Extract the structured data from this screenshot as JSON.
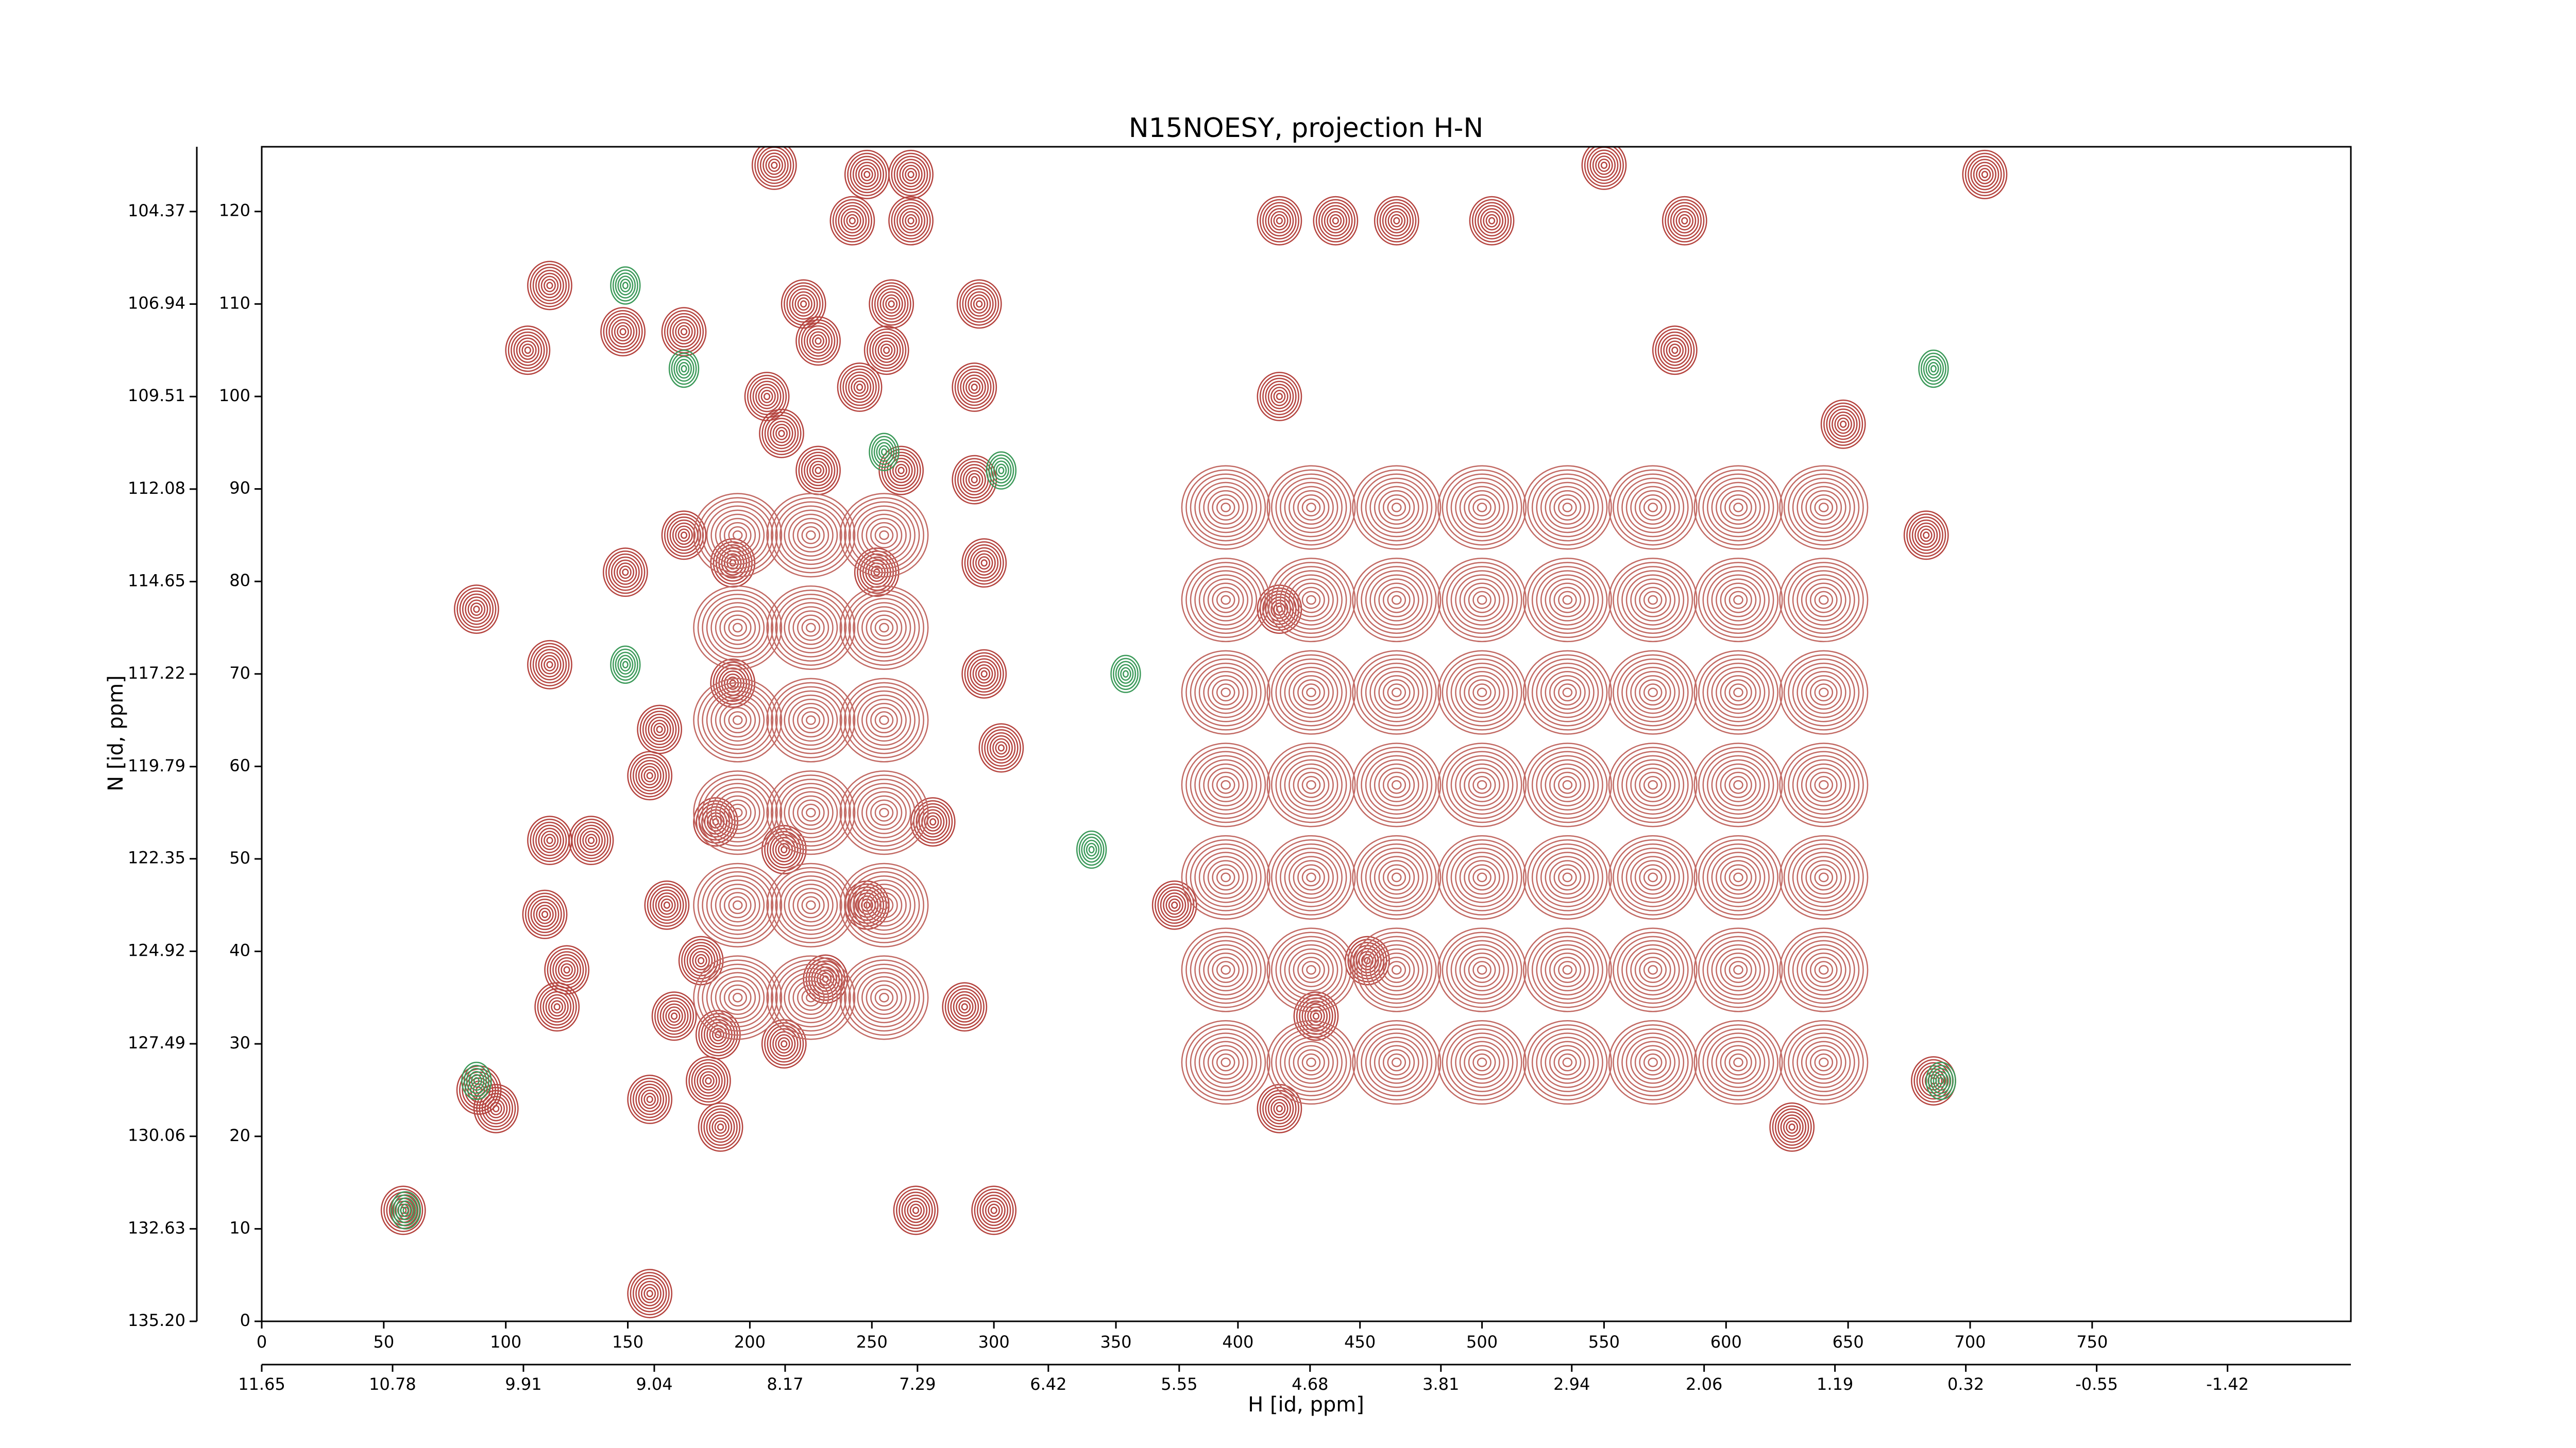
{
  "chart_data": {
    "type": "contour",
    "title": "N15NOESY, projection H-N",
    "xlabel": "H [id, ppm]",
    "ylabel": "N [id, ppm]",
    "xlim": [
      0,
      856
    ],
    "ylim": [
      0,
      127
    ],
    "xticks": [
      0,
      50,
      100,
      150,
      200,
      250,
      300,
      350,
      400,
      450,
      500,
      550,
      600,
      650,
      700,
      750
    ],
    "yticks": [
      0,
      10,
      20,
      30,
      40,
      50,
      60,
      70,
      80,
      90,
      100,
      110,
      120
    ],
    "x2lim": [
      11.65,
      -2.24
    ],
    "x2ticks": [
      11.65,
      10.78,
      9.91,
      9.04,
      8.17,
      7.29,
      6.42,
      5.55,
      4.68,
      3.81,
      2.94,
      2.06,
      1.19,
      0.32,
      {
        "value": -0.55,
        "label": "-0.55"
      },
      {
        "value": -1.42,
        "label": "-1.42"
      }
    ],
    "y2lim": [
      135.2,
      102.57
    ],
    "y2ticks": [
      {
        "value": 135.2,
        "label": "135.20"
      },
      132.63,
      130.06,
      127.49,
      124.92,
      122.35,
      119.79,
      117.22,
      114.65,
      112.08,
      109.51,
      106.94,
      104.37
    ],
    "series": [
      {
        "color": "#b5443f",
        "levels": 8,
        "rx": 9,
        "ry": 2.6,
        "x": [
          210,
          248,
          266,
          550,
          706,
          242,
          266,
          417,
          440,
          465,
          504,
          583,
          118,
          222,
          258,
          294,
          148,
          173,
          109,
          228,
          256,
          579,
          207,
          245,
          292,
          417,
          648,
          213,
          228,
          262,
          292,
          173,
          682,
          149,
          193,
          252,
          296,
          88,
          417,
          118,
          296,
          193,
          163,
          303,
          159,
          118,
          135,
          186,
          214,
          275,
          116,
          166,
          248,
          374,
          125,
          180,
          231,
          453,
          121,
          169,
          187,
          214,
          288,
          432,
          89,
          96,
          159,
          183,
          188,
          417,
          627,
          685,
          58,
          268,
          300,
          159
        ],
        "y": [
          125,
          124,
          124,
          125,
          124,
          119,
          119,
          119,
          119,
          119,
          119,
          119,
          112,
          110,
          110,
          110,
          107,
          107,
          105,
          106,
          105,
          105,
          100,
          101,
          101,
          100,
          97,
          96,
          92,
          92,
          91,
          85,
          85,
          81,
          82,
          81,
          82,
          77,
          77,
          71,
          70,
          69,
          64,
          62,
          59,
          52,
          52,
          54,
          51,
          54,
          44,
          45,
          45,
          45,
          38,
          39,
          37,
          39,
          34,
          33,
          31,
          30,
          34,
          33,
          25,
          23,
          24,
          26,
          21,
          23,
          21,
          26,
          12,
          12,
          12,
          3
        ]
      },
      {
        "color": "#c26a64",
        "levels": 10,
        "rx": 18,
        "ry": 4.5,
        "x": [
          395,
          430,
          465,
          500,
          535,
          570,
          605,
          640,
          395,
          430,
          465,
          500,
          535,
          570,
          605,
          640,
          395,
          430,
          465,
          500,
          535,
          570,
          605,
          640,
          395,
          430,
          465,
          500,
          535,
          570,
          605,
          640,
          395,
          430,
          465,
          500,
          535,
          570,
          605,
          640,
          395,
          430,
          465,
          500,
          535,
          570,
          605,
          640,
          395,
          430,
          465,
          500,
          535,
          570,
          605,
          640,
          195,
          225,
          255,
          195,
          225,
          255,
          195,
          225,
          255,
          195,
          225,
          255,
          195,
          225,
          255,
          195,
          225,
          255
        ],
        "y": [
          88,
          88,
          88,
          88,
          88,
          88,
          88,
          88,
          78,
          78,
          78,
          78,
          78,
          78,
          78,
          78,
          68,
          68,
          68,
          68,
          68,
          68,
          68,
          68,
          58,
          58,
          58,
          58,
          58,
          58,
          58,
          58,
          48,
          48,
          48,
          48,
          48,
          48,
          48,
          48,
          38,
          38,
          38,
          38,
          38,
          38,
          38,
          38,
          28,
          28,
          28,
          28,
          28,
          28,
          28,
          28,
          85,
          85,
          85,
          75,
          75,
          75,
          65,
          65,
          65,
          55,
          55,
          55,
          45,
          45,
          45,
          35,
          35,
          35
        ]
      },
      {
        "color": "#3c9a5a",
        "levels": 6,
        "rx": 6,
        "ry": 2,
        "x": [
          149,
          149,
          685,
          340,
          88,
          59,
          173,
          255,
          303,
          354,
          688
        ],
        "y": [
          112,
          71,
          103,
          51,
          26,
          12,
          103,
          94,
          92,
          70,
          26
        ]
      }
    ]
  }
}
